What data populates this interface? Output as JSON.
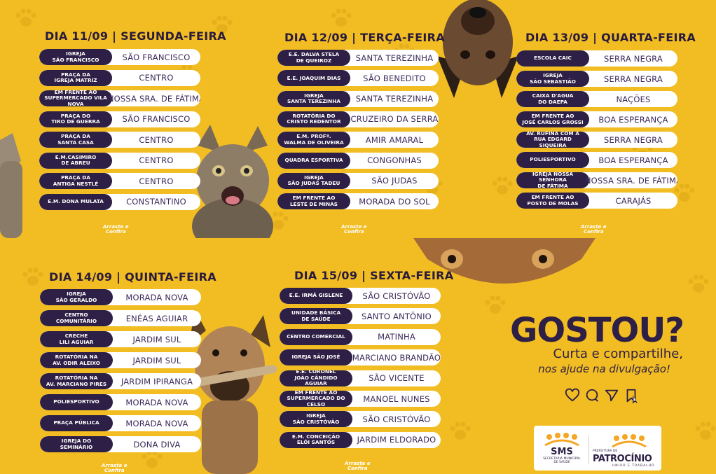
{
  "days": [
    {
      "title": "DIA 11/09 | SEGUNDA-FEIRA",
      "rows": [
        {
          "loc": "IGREJA\nSÃO FRANCISCO",
          "hood": "SÃO FRANCISCO"
        },
        {
          "loc": "PRAÇA DA\nIGREJA MATRIZ",
          "hood": "CENTRO"
        },
        {
          "loc": "EM FRENTE AO\nSUPERMERCADO VILA NOVA",
          "hood": "NOSSA SRA. DE FÁTIMA"
        },
        {
          "loc": "PRAÇA DO\nTIRO DE GUERRA",
          "hood": "SÃO FRANCISCO"
        },
        {
          "loc": "PRAÇA DA\nSANTA CASA",
          "hood": "CENTRO"
        },
        {
          "loc": "E.M.CASIMIRO\nDE ABREU",
          "hood": "CENTRO"
        },
        {
          "loc": "PRAÇA DA\nANTIGA NESTLÉ",
          "hood": "CENTRO"
        },
        {
          "loc": "E.M. DONA MULATA",
          "hood": "CONSTANTINO"
        }
      ]
    },
    {
      "title": "DIA 12/09 | TERÇA-FEIRA",
      "rows": [
        {
          "loc": "E.E. DALVA STELA\nDE QUEIROZ",
          "hood": "SANTA TEREZINHA"
        },
        {
          "loc": "E.E. JOAQUIM DIAS",
          "hood": "SÃO BENEDITO"
        },
        {
          "loc": "IGREJA\nSANTA TEREZINHA",
          "hood": "SANTA TEREZINHA"
        },
        {
          "loc": "ROTATÓRIA DO\nCRISTO REDENTOR",
          "hood": "CRUZEIRO DA SERRA"
        },
        {
          "loc": "E.M. PROFª.\nWALMA DE OLIVEIRA",
          "hood": "AMIR AMARAL"
        },
        {
          "loc": "QUADRA ESPORTIVA",
          "hood": "CONGONHAS"
        },
        {
          "loc": "IGREJA\nSÃO JUDAS TADEU",
          "hood": "SÃO JUDAS"
        },
        {
          "loc": "EM FRENTE AO\nLESTE DE MINAS",
          "hood": "MORADA DO SOL"
        }
      ]
    },
    {
      "title": "DIA 13/09 | QUARTA-FEIRA",
      "rows": [
        {
          "loc": "ESCOLA CAIC",
          "hood": "SERRA NEGRA"
        },
        {
          "loc": "IGREJA\nSÃO SEBASTIÃO",
          "hood": "SERRA NEGRA"
        },
        {
          "loc": "CAIXA D'AGUA\nDO DAEPA",
          "hood": "NAÇÕES"
        },
        {
          "loc": "EM FRENTE AO\nJOSÉ CARLOS GROSSI",
          "hood": "BOA ESPERANÇA"
        },
        {
          "loc": "AV. RUFINA COM A\nRUA EDGARD SIQUEIRA",
          "hood": "SERRA NEGRA"
        },
        {
          "loc": "POLIESPORTIVO",
          "hood": "BOA ESPERANÇA"
        },
        {
          "loc": "IGREJA NOSSA SENHORA\nDE FÁTIMA",
          "hood": "NOSSA SRA. DE FÁTIMA"
        },
        {
          "loc": "EM FRENTE AO\nPOSTO DE MOLAS",
          "hood": "CARAJÁS"
        }
      ]
    },
    {
      "title": "DIA 14/09 | QUINTA-FEIRA",
      "rows": [
        {
          "loc": "IGREJA\nSÃO GERALDO",
          "hood": "MORADA NOVA"
        },
        {
          "loc": "CENTRO\nCOMUNITÁRIO",
          "hood": "ENÉAS AGUIAR"
        },
        {
          "loc": "CRECHE\nLILI AGUIAR",
          "hood": "JARDIM SUL"
        },
        {
          "loc": "ROTATÓRIA NA\nAV. ODIR ALEIXO",
          "hood": "JARDIM SUL"
        },
        {
          "loc": "ROTATÓRIA NA\nAV. MARCIANO PIRES",
          "hood": "JARDIM IPIRANGA"
        },
        {
          "loc": "POLIESPORTIVO",
          "hood": "MORADA NOVA"
        },
        {
          "loc": "PRAÇA PÚBLICA",
          "hood": "MORADA NOVA"
        },
        {
          "loc": "IGREJA DO\nSEMINÁRIO",
          "hood": "DONA DIVA"
        }
      ]
    },
    {
      "title": "DIA 15/09 | SEXTA-FEIRA",
      "rows": [
        {
          "loc": "E.E. IRMÃ GISLENE",
          "hood": "SÃO CRISTÓVÃO"
        },
        {
          "loc": "UNIDADE BÁSICA\nDE SAÚDE",
          "hood": "SANTO ANTÔNIO"
        },
        {
          "loc": "CENTRO COMERCIAL",
          "hood": "MATINHA"
        },
        {
          "loc": "IGREJA SÃO JOSÉ",
          "hood": "MARCIANO BRANDÃO"
        },
        {
          "loc": "E.E. CORONEL\nJOÃO CÂNDIDO AGUIAR",
          "hood": "SÃO VICENTE"
        },
        {
          "loc": "EM FRENTE AO\nSUPERMERCADO DO CELSO",
          "hood": "MANOEL NUNES"
        },
        {
          "loc": "IGREJA\nSÃO CRISTÓVÃO",
          "hood": "SÃO CRISTÓVÃO"
        },
        {
          "loc": "E.M. CONCEIÇÃO\nELÓI SANTOS",
          "hood": "JARDIM ELDORADO"
        }
      ]
    }
  ],
  "brand_mark": "Arraste e\nConfira",
  "promo": {
    "headline": "GOSTOU?",
    "line1": "Curta e compartilhe,",
    "line2": "nos ajude na divulgação!"
  },
  "icons": [
    "heart-icon",
    "comment-icon",
    "send-icon",
    "bookmark-icon",
    "cursor-icon"
  ],
  "logos": {
    "sms_title": "SMS",
    "sms_sub": "SECRETARIA MUNICIPAL\nDE SAÚDE",
    "pref_small": "PREFEITURA DE",
    "pref_name": "PATROCÍNIO",
    "pref_motto": "UNIÃO E TRABALHO"
  },
  "colors": {
    "background": "#f2bd22",
    "dark": "#2d1f45",
    "pill": "#ffffff",
    "text": "#3c2a5a",
    "logo_orange": "#f5a623"
  }
}
